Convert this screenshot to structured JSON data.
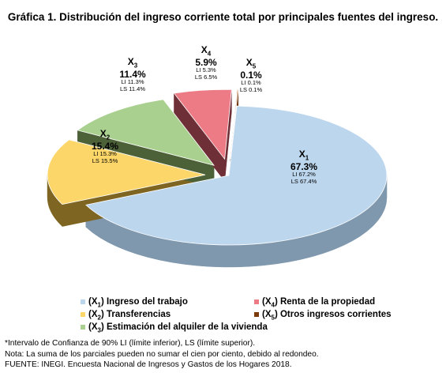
{
  "title": "Gráfica 1. Distribución del ingreso corriente total por principales fuentes del ingreso.",
  "chart_data": {
    "type": "pie",
    "style": "3d-exploded",
    "slices": [
      {
        "code": "X",
        "sub": "1",
        "value": 67.3,
        "pct_label": "67.3%",
        "li": "LI  67.2%",
        "ls": "LS 67.4%",
        "color": "#bcd6ee",
        "side": "#7f98ae",
        "name_prefix": "(X",
        "name_suffix": ") Ingreso del trabajo"
      },
      {
        "code": "X",
        "sub": "2",
        "value": 15.4,
        "pct_label": "15.4%",
        "li": "LI  15.3%",
        "ls": "LS 15.5%",
        "color": "#fcd668",
        "side": "#7e6522",
        "name_prefix": "(X",
        "name_suffix": ") Transferencias"
      },
      {
        "code": "X",
        "sub": "3",
        "value": 11.4,
        "pct_label": "11.4%",
        "li": "LI  11.3%",
        "ls": "LS 11.4%",
        "color": "#a9d08e",
        "side": "#4d6138",
        "name_prefix": "(X",
        "name_suffix": ") Estimación del alquiler de la vivienda"
      },
      {
        "code": "X",
        "sub": "4",
        "value": 5.9,
        "pct_label": "5.9%",
        "li": "LI  5.3%",
        "ls": "LS 6.5%",
        "color": "#ed7b86",
        "side": "#6e2f36",
        "name_prefix": "(X",
        "name_suffix": ") Renta de la propiedad"
      },
      {
        "code": "X",
        "sub": "5",
        "value": 0.1,
        "pct_label": "0.1%",
        "li": "LI  0.1%",
        "ls": "LS 0.1%",
        "color": "#c55a11",
        "side": "#6b3208",
        "name_prefix": "(X",
        "name_suffix": ") Otros ingresos corrientes"
      }
    ]
  },
  "notes": [
    "*Intervalo de Confianza de 90% LI (límite inferior), LS (límite superior).",
    "Nota: La suma de los parciales pueden no sumar el cien por ciento, debido al redondeo.",
    "FUENTE: INEGI. Encuesta Nacional de Ingresos y Gastos de los Hogares 2018."
  ]
}
